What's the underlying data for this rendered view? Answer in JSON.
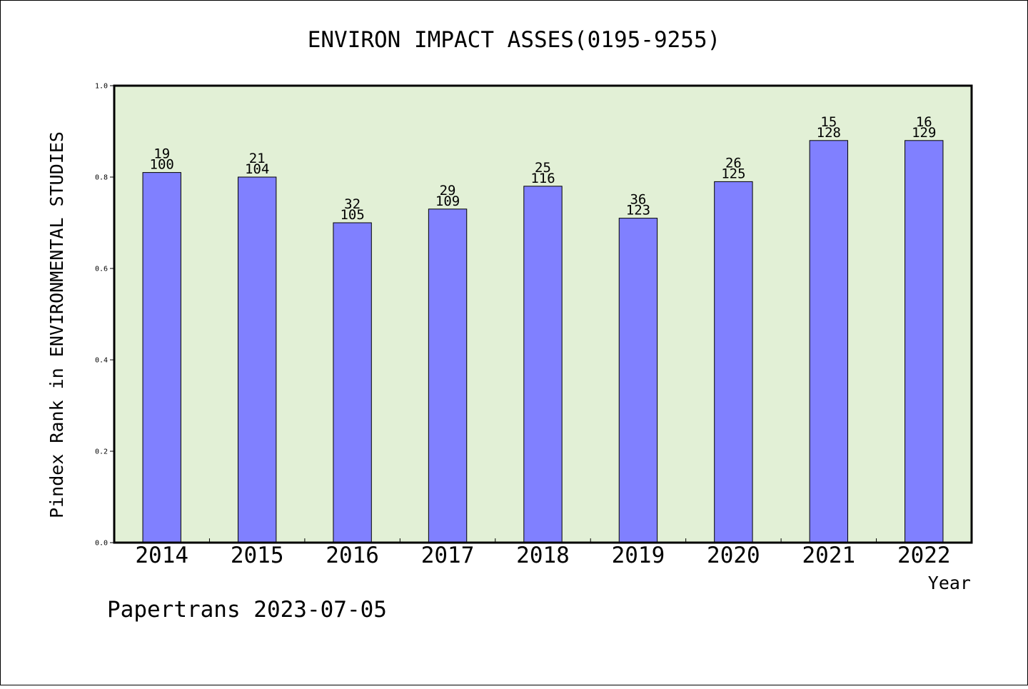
{
  "chart_data": {
    "type": "bar",
    "title": "ENVIRON IMPACT ASSES(0195-9255)",
    "xlabel": "Year",
    "ylabel": "Pindex Rank in ENVIRONMENTAL STUDIES",
    "categories": [
      "2014",
      "2015",
      "2016",
      "2017",
      "2018",
      "2019",
      "2020",
      "2021",
      "2022"
    ],
    "values": [
      0.81,
      0.8,
      0.7,
      0.73,
      0.78,
      0.71,
      0.79,
      0.88,
      0.88
    ],
    "rank_labels": [
      "19",
      "21",
      "32",
      "29",
      "25",
      "36",
      "26",
      "15",
      "16"
    ],
    "total_labels": [
      "100",
      "104",
      "105",
      "109",
      "116",
      "123",
      "125",
      "128",
      "129"
    ],
    "ylim": [
      0,
      1.0
    ],
    "yticks": [
      "0.0",
      "0.2",
      "0.4",
      "0.6",
      "0.8",
      "1.0"
    ],
    "grid": false,
    "colors": {
      "bar": "#8080ff",
      "plot_background": "#e2f0d6",
      "axes": "#000000"
    }
  },
  "footer": "Papertrans 2023-07-05"
}
